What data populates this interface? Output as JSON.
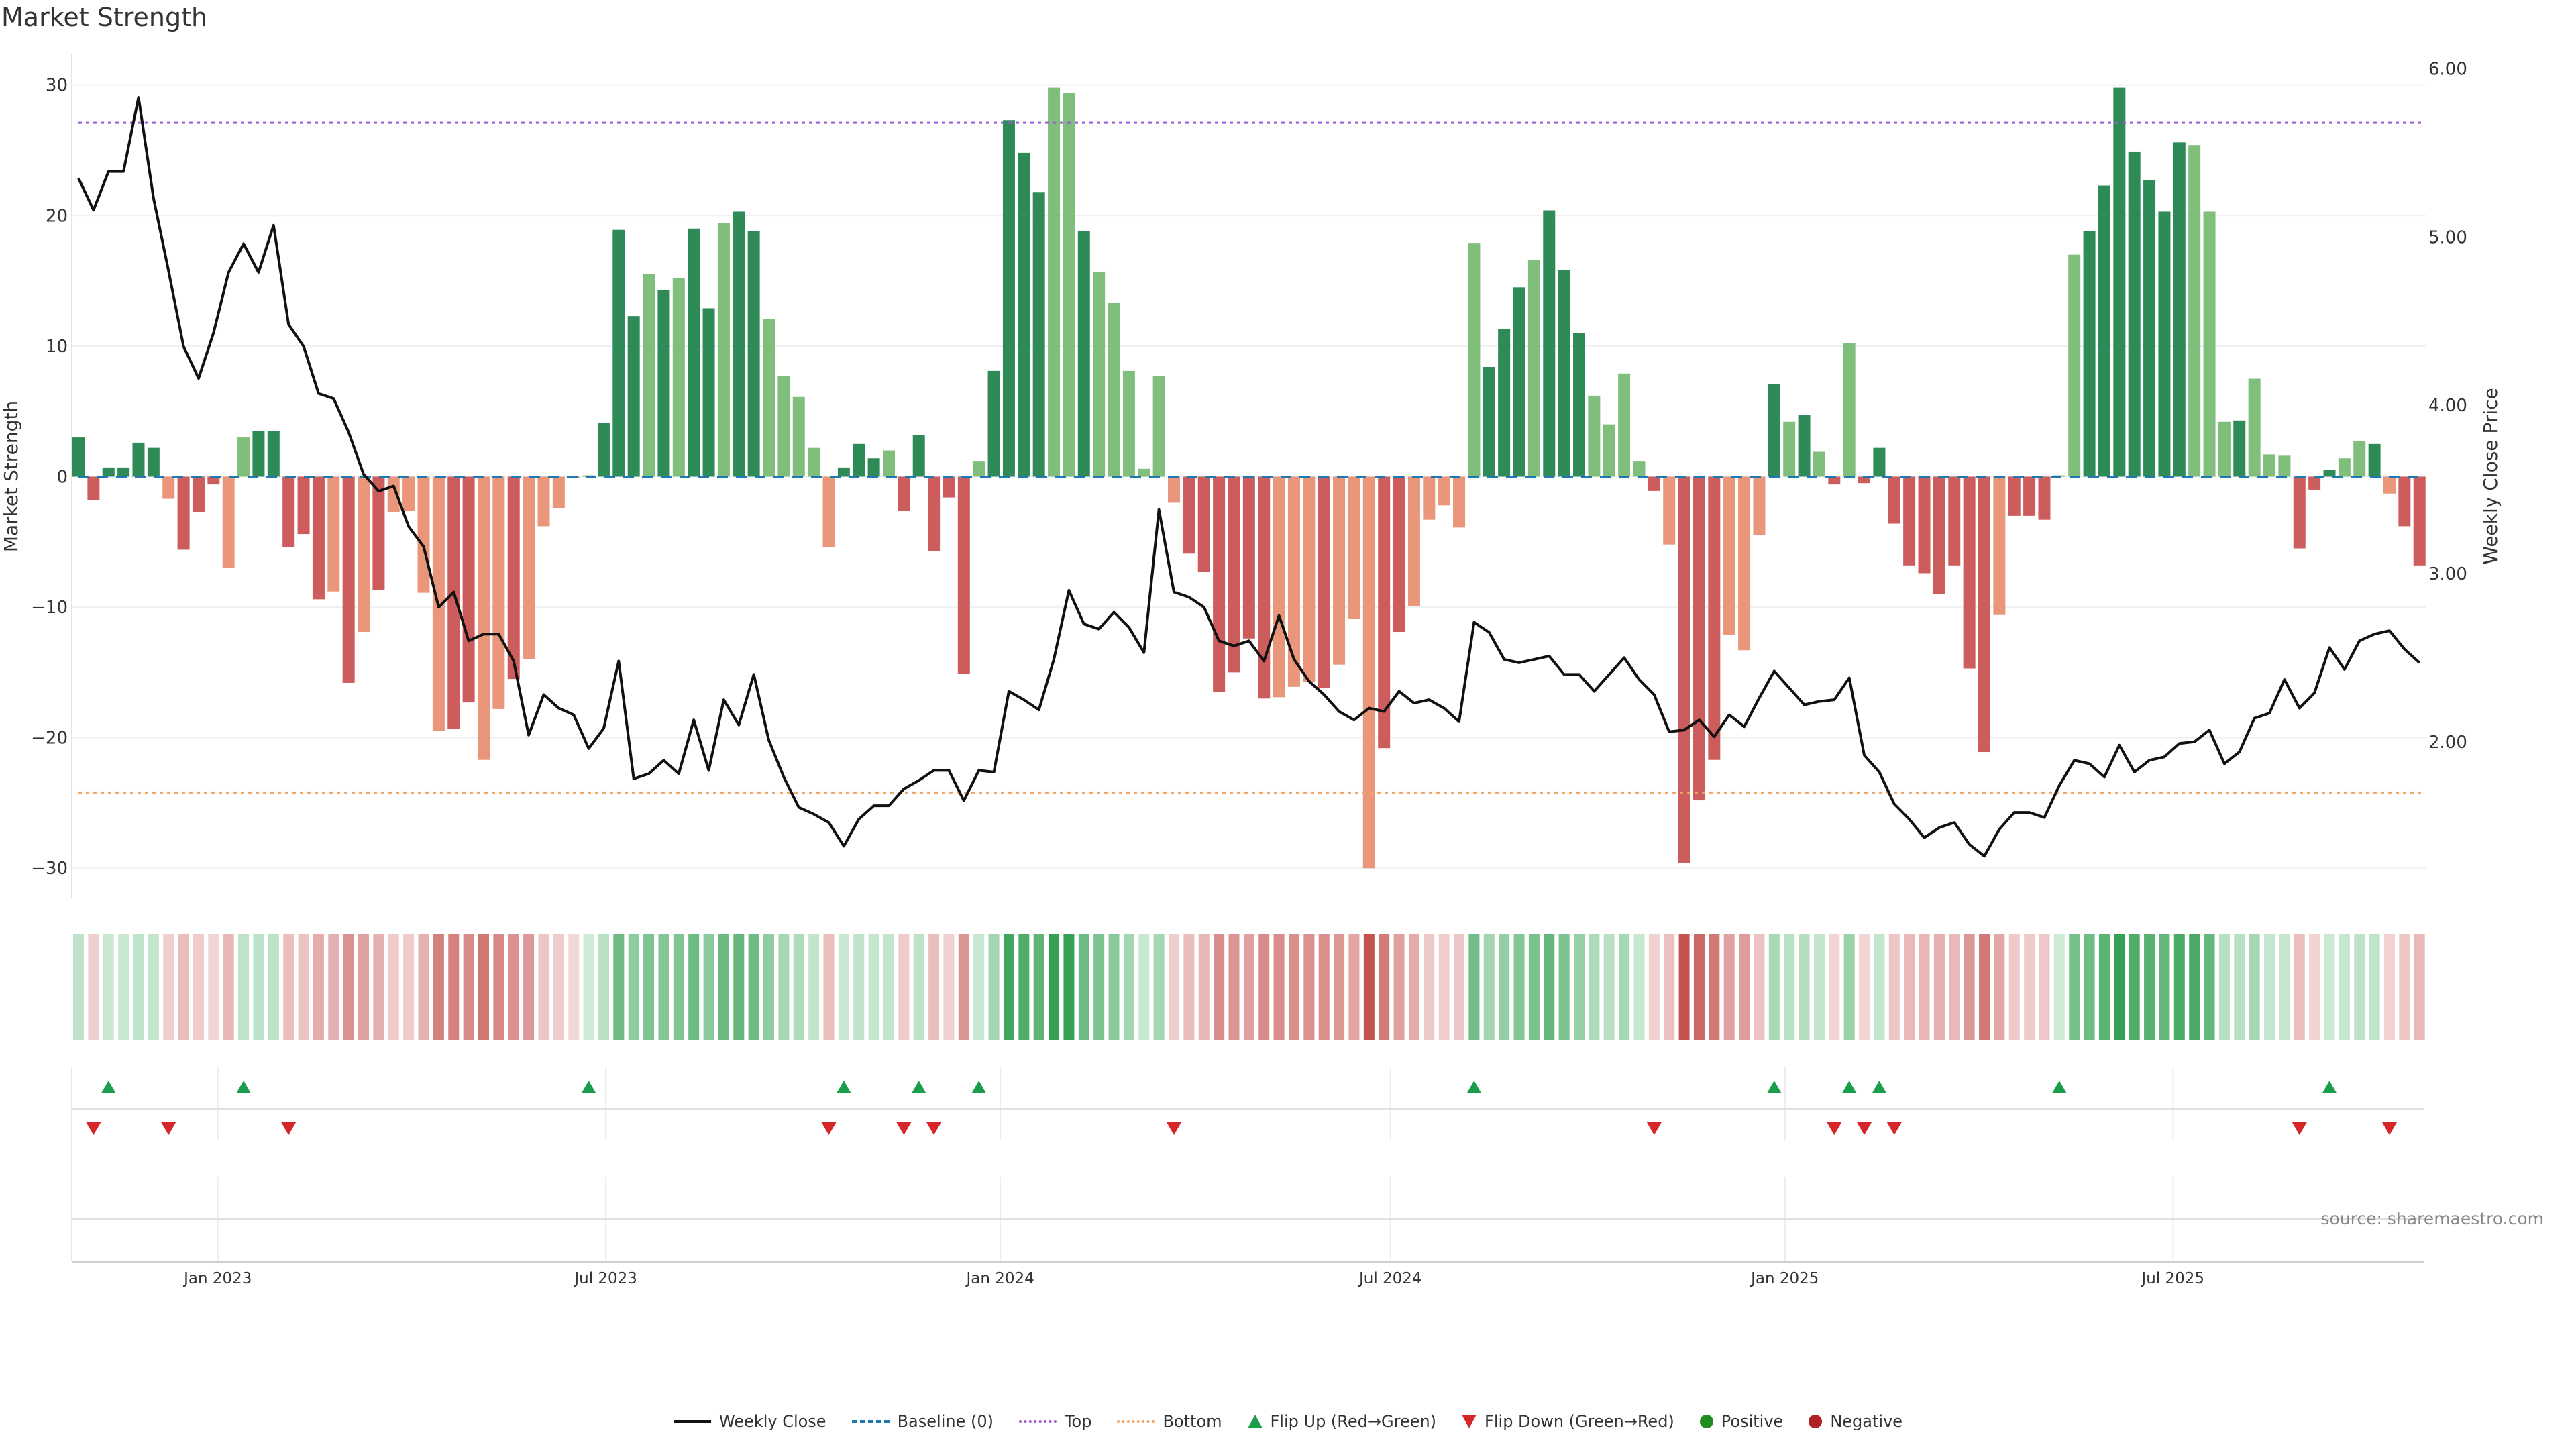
{
  "title": "Market Strength",
  "source": "source: sharemaestro.com",
  "colors": {
    "pos_dark": "#2e8b57",
    "pos_light": "#7fbf7b",
    "neg_dark": "#cd5c5c",
    "neg_light": "#e9967a",
    "close": "#111111",
    "baseline": "#1f77b4",
    "top": "#9b59d6",
    "bottom": "#f4a460",
    "flip_up": "#1a9e4a",
    "flip_down": "#d62728",
    "positive": "#228b22",
    "negative": "#b22222"
  },
  "legend": [
    {
      "key": "close",
      "label": "Weekly Close"
    },
    {
      "key": "baseline",
      "label": "Baseline (0)"
    },
    {
      "key": "top",
      "label": "Top"
    },
    {
      "key": "bottom",
      "label": "Bottom"
    },
    {
      "key": "flip_up",
      "label": "Flip Up (Red→Green)"
    },
    {
      "key": "flip_down",
      "label": "Flip Down (Green→Red)"
    },
    {
      "key": "positive",
      "label": "Positive"
    },
    {
      "key": "negative",
      "label": "Negative"
    }
  ],
  "chart_data": {
    "type": "bar",
    "title": "Market Strength",
    "ylabel": "Market Strength",
    "y2label": "Weekly Close Price",
    "ylim": [
      -32.3,
      32.4
    ],
    "y2lim": [
      1.07,
      6.09
    ],
    "yticks": [
      -30,
      -20,
      -10,
      0,
      10,
      20,
      30
    ],
    "y2ticks": [
      "2.00",
      "3.00",
      "4.00",
      "5.00",
      "6.00"
    ],
    "start_week": "2022-10-28",
    "xticks": [
      {
        "label": "Jan 2023",
        "date": "2023-01-01"
      },
      {
        "label": "Jul 2023",
        "date": "2023-07-01"
      },
      {
        "label": "Jan 2024",
        "date": "2024-01-01"
      },
      {
        "label": "Jul 2024",
        "date": "2024-07-01"
      },
      {
        "label": "Jan 2025",
        "date": "2025-01-01"
      },
      {
        "label": "Jul 2025",
        "date": "2025-07-01"
      }
    ],
    "top_level": 27.1,
    "bottom_level": -24.2,
    "strength": [
      3.0,
      -1.8,
      0.7,
      0.7,
      2.6,
      2.2,
      -1.7,
      -5.6,
      -2.7,
      -0.6,
      -7.0,
      3.0,
      3.5,
      3.5,
      -5.4,
      -4.4,
      -9.4,
      -8.8,
      -15.8,
      -11.9,
      -8.7,
      -2.7,
      -2.6,
      -8.9,
      -19.5,
      -19.3,
      -17.3,
      -21.7,
      -17.8,
      -15.5,
      -14.0,
      -3.8,
      -2.4,
      -0.1,
      0.1,
      4.1,
      18.9,
      12.3,
      15.5,
      14.3,
      15.2,
      19.0,
      12.9,
      19.4,
      20.3,
      18.8,
      12.1,
      7.7,
      6.1,
      2.2,
      -5.4,
      0.7,
      2.5,
      1.4,
      2.0,
      -2.6,
      3.2,
      -5.7,
      -1.6,
      -15.1,
      1.2,
      8.1,
      27.3,
      24.8,
      21.8,
      29.8,
      29.4,
      18.8,
      15.7,
      13.3,
      8.1,
      0.6,
      7.7,
      -2.0,
      -5.9,
      -7.3,
      -16.5,
      -15.0,
      -12.4,
      -17.0,
      -16.9,
      -16.1,
      -15.7,
      -16.2,
      -14.4,
      -10.9,
      -30.0,
      -20.8,
      -11.9,
      -9.9,
      -3.3,
      -2.2,
      -3.9,
      17.9,
      8.4,
      11.3,
      14.5,
      16.6,
      20.4,
      15.8,
      11.0,
      6.2,
      4.0,
      7.9,
      1.2,
      -1.1,
      -5.2,
      -29.6,
      -24.8,
      -21.7,
      -12.1,
      -13.3,
      -4.5,
      7.1,
      4.2,
      4.7,
      1.9,
      -0.6,
      10.2,
      -0.5,
      2.2,
      -3.6,
      -6.8,
      -7.4,
      -9.0,
      -6.8,
      -14.7,
      -21.1,
      -10.6,
      -3.0,
      -3.0,
      -3.3,
      0.1,
      17.0,
      18.8,
      22.3,
      29.8,
      24.9,
      22.7,
      20.3,
      25.6,
      25.4,
      20.3,
      4.2,
      4.3,
      7.5,
      1.7,
      1.6,
      -5.5,
      -1.0,
      0.5,
      1.4,
      2.7,
      2.5,
      -1.3,
      -3.8,
      -6.8
    ],
    "shade": "ddddddldddlldddddldldllllddlldllllldddldlddlddlllllddd",
    "shade_rest": "ldddddlddddlldllllllddddddllldlllddllllldddldddlllldldddlll",
    "shade_tail": "dldldldddddddddldddlldddddddllldllldddlldldddlddd",
    "close": [
      5.35,
      5.16,
      5.39,
      5.39,
      5.83,
      5.23,
      4.8,
      4.35,
      4.16,
      4.43,
      4.79,
      4.96,
      4.79,
      5.07,
      4.48,
      4.35,
      4.07,
      4.04,
      3.84,
      3.59,
      3.49,
      3.52,
      3.28,
      3.16,
      2.8,
      2.89,
      2.6,
      2.64,
      2.64,
      2.48,
      2.04,
      2.28,
      2.2,
      2.16,
      1.96,
      2.08,
      2.48,
      1.78,
      1.81,
      1.89,
      1.81,
      2.13,
      1.83,
      2.25,
      2.1,
      2.4,
      2.01,
      1.79,
      1.61,
      1.57,
      1.52,
      1.38,
      1.54,
      1.62,
      1.62,
      1.72,
      1.77,
      1.83,
      1.83,
      1.65,
      1.83,
      1.82,
      2.3,
      2.25,
      2.19,
      2.49,
      2.9,
      2.7,
      2.67,
      2.77,
      2.68,
      2.53,
      3.38,
      2.89,
      2.86,
      2.8,
      2.6,
      2.57,
      2.6,
      2.48,
      2.75,
      2.49,
      2.36,
      2.28,
      2.18,
      2.13,
      2.2,
      2.18,
      2.3,
      2.23,
      2.25,
      2.2,
      2.12,
      2.71,
      2.65,
      2.49,
      2.47,
      2.49,
      2.51,
      2.4,
      2.4,
      2.3,
      2.4,
      2.5,
      2.37,
      2.28,
      2.06,
      2.07,
      2.13,
      2.03,
      2.16,
      2.09,
      2.26,
      2.42,
      2.32,
      2.22,
      2.24,
      2.25,
      2.38,
      1.92,
      1.82,
      1.63,
      1.54,
      1.43,
      1.49,
      1.52,
      1.39,
      1.32,
      1.48,
      1.58,
      1.58,
      1.55,
      1.74,
      1.89,
      1.87,
      1.79,
      1.98,
      1.82,
      1.89,
      1.91,
      1.99,
      2.0,
      2.07,
      1.87,
      1.94,
      2.14,
      2.17,
      2.37,
      2.2,
      2.29,
      2.56,
      2.43,
      2.6,
      2.64,
      2.66,
      2.55,
      2.47
    ],
    "flip_up_weeks": [
      3,
      12,
      35,
      52,
      57,
      61,
      94,
      114,
      119,
      121,
      133,
      151
    ],
    "flip_down_weeks": [
      2,
      7,
      15,
      51,
      56,
      58,
      74,
      106,
      118,
      120,
      122,
      149,
      155
    ]
  }
}
